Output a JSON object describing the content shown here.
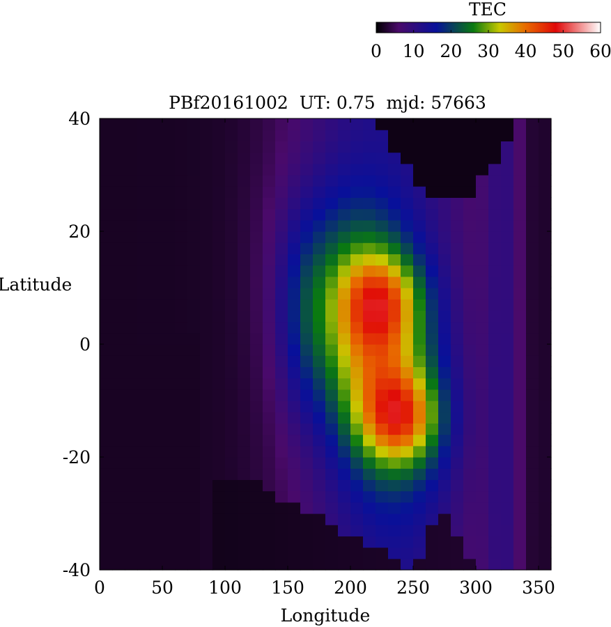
{
  "chart_data": {
    "type": "heatmap",
    "title": "PBf20161002  UT: 0.75  mjd: 57663",
    "xlabel": "Longitude",
    "ylabel": "Latitude",
    "xlim": [
      0,
      360
    ],
    "ylim": [
      -40,
      40
    ],
    "xticks": [
      "0",
      "50",
      "100",
      "150",
      "200",
      "250",
      "300",
      "350"
    ],
    "yticks": [
      "40",
      "20",
      "0",
      "-20",
      "-40"
    ],
    "xtick_values": [
      0,
      50,
      100,
      150,
      200,
      250,
      300,
      350
    ],
    "ytick_values": [
      40,
      20,
      0,
      -20,
      -40
    ],
    "grid": false,
    "colorbar": {
      "label": "TEC",
      "range": [
        0,
        60
      ],
      "ticks": [
        "0",
        "10",
        "20",
        "30",
        "40",
        "50",
        "60"
      ],
      "tick_values": [
        0,
        10,
        20,
        30,
        40,
        50,
        60
      ],
      "placement": "top-right",
      "colors": [
        "#000000",
        "#4a0a6a",
        "#08109a",
        "#0a7a10",
        "#c8c800",
        "#e86a00",
        "#e00808",
        "#ffffff"
      ],
      "stops": [
        0,
        6,
        16,
        26,
        33,
        40,
        48,
        60
      ]
    },
    "grid_spec": {
      "lon_start": 0,
      "lon_end": 360,
      "lon_step": 10,
      "lat_start": -40,
      "lat_end": 40,
      "lat_step": 2
    },
    "features": {
      "peak_north": {
        "lon": 225,
        "lat": 8,
        "tec": 44
      },
      "peak_south": {
        "lon": 240,
        "lat": -13,
        "tec": 47
      },
      "background_tec": 2,
      "max_tec": 47
    }
  }
}
